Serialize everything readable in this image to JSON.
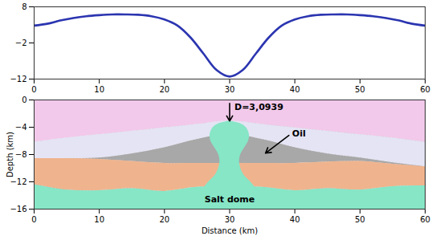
{
  "chart_data": [
    {
      "type": "line",
      "x": [
        0,
        2,
        4,
        6,
        8,
        10,
        12,
        14,
        16,
        18,
        20,
        22,
        24,
        26,
        28,
        30,
        32,
        34,
        36,
        38,
        40,
        42,
        44,
        46,
        48,
        50,
        52,
        54,
        56,
        58,
        60
      ],
      "values": [
        2.8,
        3.3,
        4.2,
        4.9,
        5.4,
        5.7,
        5.9,
        5.9,
        5.8,
        5.4,
        4.5,
        2.8,
        -0.5,
        -5,
        -9.5,
        -11.3,
        -9.5,
        -5,
        -0.5,
        2.8,
        4.5,
        5.4,
        5.8,
        5.9,
        5.9,
        5.7,
        5.4,
        4.9,
        4.2,
        3.3,
        2.8
      ],
      "color": "#2b35b0",
      "xlim": [
        0,
        60
      ],
      "xticks": [
        0,
        10,
        20,
        30,
        40,
        50,
        60
      ],
      "ylim": [
        -12,
        8
      ],
      "yticks": [
        8,
        -2,
        -12
      ],
      "grid": false
    },
    {
      "type": "area",
      "xlabel": "Distance (km)",
      "ylabel": "Depth (km)",
      "xlim": [
        0,
        60
      ],
      "xticks": [
        0,
        10,
        20,
        30,
        40,
        50,
        60
      ],
      "ylim": [
        -16,
        0
      ],
      "yticks": [
        0,
        -4,
        -8,
        -12,
        -16
      ],
      "grid": false,
      "layers": [
        {
          "color": "#f2c9ea",
          "x": [
            0,
            5,
            10,
            15,
            20,
            25,
            30,
            35,
            40,
            45,
            50,
            55,
            60
          ],
          "top": [
            0,
            0,
            0,
            0,
            0,
            0,
            0,
            0,
            0,
            0,
            0,
            0,
            0
          ],
          "bottom": [
            -6.2,
            -5.6,
            -5.1,
            -4.6,
            -4.1,
            -3.6,
            -3.1,
            -3.6,
            -4.1,
            -4.6,
            -5.1,
            -5.6,
            -6.2
          ]
        },
        {
          "color": "#e4e4f4",
          "x": [
            0,
            5,
            10,
            15,
            20,
            25,
            30,
            35,
            40,
            45,
            50,
            55,
            60
          ],
          "top": [
            -6.2,
            -5.6,
            -5.1,
            -4.6,
            -4.1,
            -3.6,
            -3.1,
            -3.6,
            -4.1,
            -4.6,
            -5.1,
            -5.6,
            -6.2
          ],
          "bottom": [
            -8.6,
            -8.6,
            -8.5,
            -7.9,
            -7.0,
            -5.8,
            -5,
            -5.8,
            -7.0,
            -7.9,
            -8.5,
            -9.2,
            -9.8
          ]
        },
        {
          "color": "#a8a8a8",
          "x": [
            0,
            5,
            10,
            15,
            20,
            25,
            30,
            35,
            40,
            45,
            50,
            55,
            60
          ],
          "top": [
            -8.6,
            -8.6,
            -8.5,
            -7.9,
            -7.0,
            -5.8,
            -5,
            -5.8,
            -7.0,
            -7.9,
            -8.5,
            -9.2,
            -9.8
          ],
          "bottom": [
            -8.6,
            -8.6,
            -8.7,
            -9.0,
            -9.3,
            -9.3,
            -9.3,
            -9.3,
            -9.3,
            -9.1,
            -9.0,
            -9.4,
            -9.8
          ]
        },
        {
          "color": "#efb48e",
          "x": [
            0,
            5,
            10,
            15,
            20,
            25,
            30,
            35,
            40,
            45,
            50,
            55,
            60
          ],
          "top": [
            -8.6,
            -8.6,
            -8.7,
            -9.0,
            -9.3,
            -9.3,
            -9.3,
            -9.3,
            -9.3,
            -9.1,
            -9.0,
            -9.4,
            -9.8
          ],
          "bottom": [
            -12.4,
            -13.2,
            -13.3,
            -13.0,
            -13.4,
            -12.8,
            -12.8,
            -12.8,
            -13.3,
            -13.0,
            -13.2,
            -12.7,
            -12.6
          ]
        },
        {
          "color": "#86e6c6",
          "x": [
            0,
            5,
            10,
            15,
            20,
            25,
            30,
            35,
            40,
            45,
            50,
            55,
            60
          ],
          "top": [
            -12.4,
            -13.2,
            -13.3,
            -13.0,
            -13.4,
            -12.8,
            -12.8,
            -12.8,
            -13.3,
            -13.0,
            -13.2,
            -12.7,
            -12.6
          ],
          "bottom": [
            -16,
            -16,
            -16,
            -16,
            -16,
            -16,
            -16,
            -16,
            -16,
            -16,
            -16,
            -16,
            -16
          ]
        }
      ],
      "dome": {
        "color": "#86e6c6",
        "y": [
          -3.0939,
          -3.5,
          -4,
          -5,
          -6,
          -7,
          -8,
          -9,
          -10,
          -11,
          -12,
          -13.5
        ],
        "left": [
          30,
          28.3,
          27.5,
          27.0,
          27.1,
          27.7,
          28.3,
          28.5,
          28.3,
          27.8,
          26.8,
          25.5
        ],
        "right": [
          30,
          31.7,
          32.5,
          33.0,
          32.9,
          32.3,
          31.7,
          31.5,
          31.7,
          32.2,
          33.2,
          34.5
        ]
      },
      "annotations": [
        {
          "text": "D=3,0939",
          "x": 30,
          "y": -3.0939
        },
        {
          "text": "Oil",
          "x": 35.5,
          "y": -7.8
        }
      ],
      "labels": [
        {
          "text": "Salt dome",
          "x": 30,
          "y": -14.6
        }
      ]
    }
  ]
}
